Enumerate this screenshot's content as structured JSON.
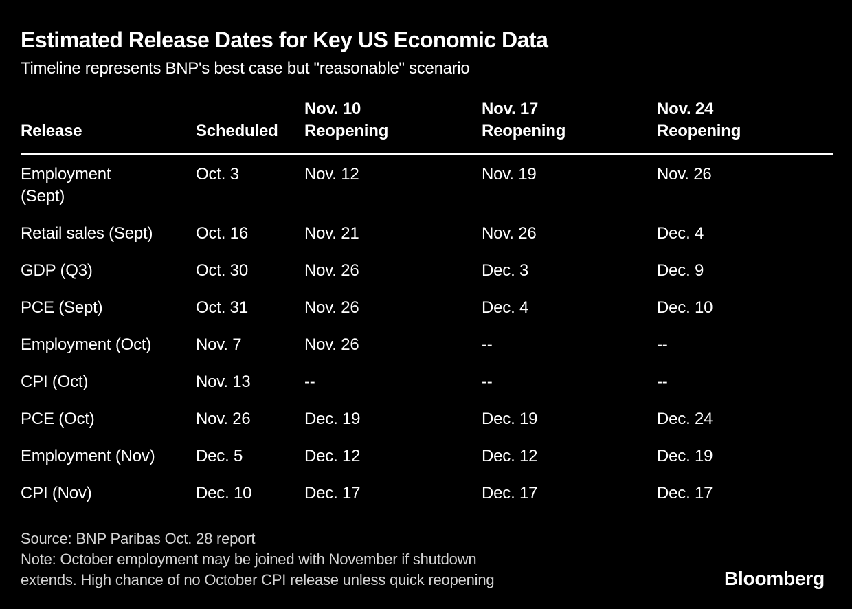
{
  "colors": {
    "background": "#000000",
    "text": "#ffffff",
    "muted_text": "#d4d4d4",
    "rule": "#ffffff"
  },
  "header": {
    "title": "Estimated Release Dates for Key US Economic Data",
    "subtitle": "Timeline represents BNP's best case but \"reasonable\" scenario"
  },
  "table": {
    "col_headers": [
      "Release",
      "Scheduled",
      "Nov. 10\nReopening",
      "Nov. 17\nReopening",
      "Nov. 24\nReopening"
    ],
    "rows": [
      {
        "release": "Employment\n(Sept)",
        "scheduled": "Oct. 3",
        "r10": "Nov. 12",
        "r17": "Nov. 19",
        "r24": "Nov. 26"
      },
      {
        "release": "Retail sales (Sept)",
        "scheduled": "Oct. 16",
        "r10": "Nov. 21",
        "r17": "Nov. 26",
        "r24": "Dec. 4"
      },
      {
        "release": "GDP (Q3)",
        "scheduled": "Oct. 30",
        "r10": "Nov. 26",
        "r17": "Dec. 3",
        "r24": "Dec. 9"
      },
      {
        "release": "PCE (Sept)",
        "scheduled": "Oct. 31",
        "r10": "Nov. 26",
        "r17": "Dec. 4",
        "r24": "Dec. 10"
      },
      {
        "release": "Employment (Oct)",
        "scheduled": "Nov. 7",
        "r10": "Nov. 26",
        "r17": "--",
        "r24": "--"
      },
      {
        "release": "CPI (Oct)",
        "scheduled": "Nov. 13",
        "r10": "--",
        "r17": "--",
        "r24": "--"
      },
      {
        "release": "PCE (Oct)",
        "scheduled": "Nov. 26",
        "r10": "Dec. 19",
        "r17": "Dec. 19",
        "r24": "Dec. 24"
      },
      {
        "release": "Employment (Nov)",
        "scheduled": "Dec. 5",
        "r10": "Dec. 12",
        "r17": "Dec. 12",
        "r24": "Dec. 19"
      },
      {
        "release": "CPI (Nov)",
        "scheduled": "Dec. 10",
        "r10": "Dec. 17",
        "r17": "Dec. 17",
        "r24": "Dec. 17"
      }
    ]
  },
  "footer": {
    "source": "Source: BNP Paribas Oct. 28 report",
    "note": "Note: October employment may be joined with November if shutdown\nextends. High chance of no October CPI release unless quick reopening",
    "logo": "Bloomberg"
  },
  "chart_data": {
    "type": "table",
    "title": "Estimated Release Dates for Key US Economic Data",
    "subtitle": "Timeline represents BNP's best case but \"reasonable\" scenario",
    "columns": [
      "Release",
      "Scheduled",
      "Nov. 10 Reopening",
      "Nov. 17 Reopening",
      "Nov. 24 Reopening"
    ],
    "rows": [
      [
        "Employment (Sept)",
        "Oct. 3",
        "Nov. 12",
        "Nov. 19",
        "Nov. 26"
      ],
      [
        "Retail sales (Sept)",
        "Oct. 16",
        "Nov. 21",
        "Nov. 26",
        "Dec. 4"
      ],
      [
        "GDP (Q3)",
        "Oct. 30",
        "Nov. 26",
        "Dec. 3",
        "Dec. 9"
      ],
      [
        "PCE (Sept)",
        "Oct. 31",
        "Nov. 26",
        "Dec. 4",
        "Dec. 10"
      ],
      [
        "Employment (Oct)",
        "Nov. 7",
        "Nov. 26",
        "--",
        "--"
      ],
      [
        "CPI (Oct)",
        "Nov. 13",
        "--",
        "--",
        "--"
      ],
      [
        "PCE (Oct)",
        "Nov. 26",
        "Dec. 19",
        "Dec. 19",
        "Dec. 24"
      ],
      [
        "Employment (Nov)",
        "Dec. 5",
        "Dec. 12",
        "Dec. 12",
        "Dec. 19"
      ],
      [
        "CPI (Nov)",
        "Dec. 10",
        "Dec. 17",
        "Dec. 17",
        "Dec. 17"
      ]
    ],
    "source": "Source: BNP Paribas Oct. 28 report",
    "note": "Note: October employment may be joined with November if shutdown extends. High chance of no October CPI release unless quick reopening",
    "brand": "Bloomberg",
    "layout": {
      "background": "black",
      "text_align": "left",
      "header_rule": true
    }
  }
}
